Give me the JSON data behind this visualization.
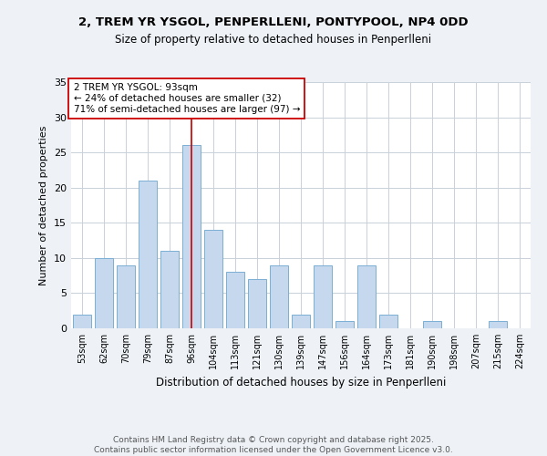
{
  "title1": "2, TREM YR YSGOL, PENPERLLENI, PONTYPOOL, NP4 0DD",
  "title2": "Size of property relative to detached houses in Penperlleni",
  "xlabel": "Distribution of detached houses by size in Penperlleni",
  "ylabel": "Number of detached properties",
  "categories": [
    "53sqm",
    "62sqm",
    "70sqm",
    "79sqm",
    "87sqm",
    "96sqm",
    "104sqm",
    "113sqm",
    "121sqm",
    "130sqm",
    "139sqm",
    "147sqm",
    "156sqm",
    "164sqm",
    "173sqm",
    "181sqm",
    "190sqm",
    "198sqm",
    "207sqm",
    "215sqm",
    "224sqm"
  ],
  "values": [
    2,
    10,
    9,
    21,
    11,
    26,
    14,
    8,
    7,
    9,
    2,
    9,
    1,
    9,
    2,
    0,
    1,
    0,
    0,
    1,
    0
  ],
  "bar_color": "#c5d8ed",
  "bar_edge_color": "#7bafd4",
  "vline_x_index": 5,
  "vline_color": "#cc0000",
  "annotation_line1": "2 TREM YR YSGOL: 93sqm",
  "annotation_line2": "← 24% of detached houses are smaller (32)",
  "annotation_line3": "71% of semi-detached houses are larger (97) →",
  "annotation_box_color": "#cc0000",
  "ylim": [
    0,
    35
  ],
  "yticks": [
    0,
    5,
    10,
    15,
    20,
    25,
    30,
    35
  ],
  "footer1": "Contains HM Land Registry data © Crown copyright and database right 2025.",
  "footer2": "Contains public sector information licensed under the Open Government Licence v3.0.",
  "bg_color": "#eef2f7",
  "plot_bg_color": "#ffffff",
  "grid_color": "#c8d0da"
}
